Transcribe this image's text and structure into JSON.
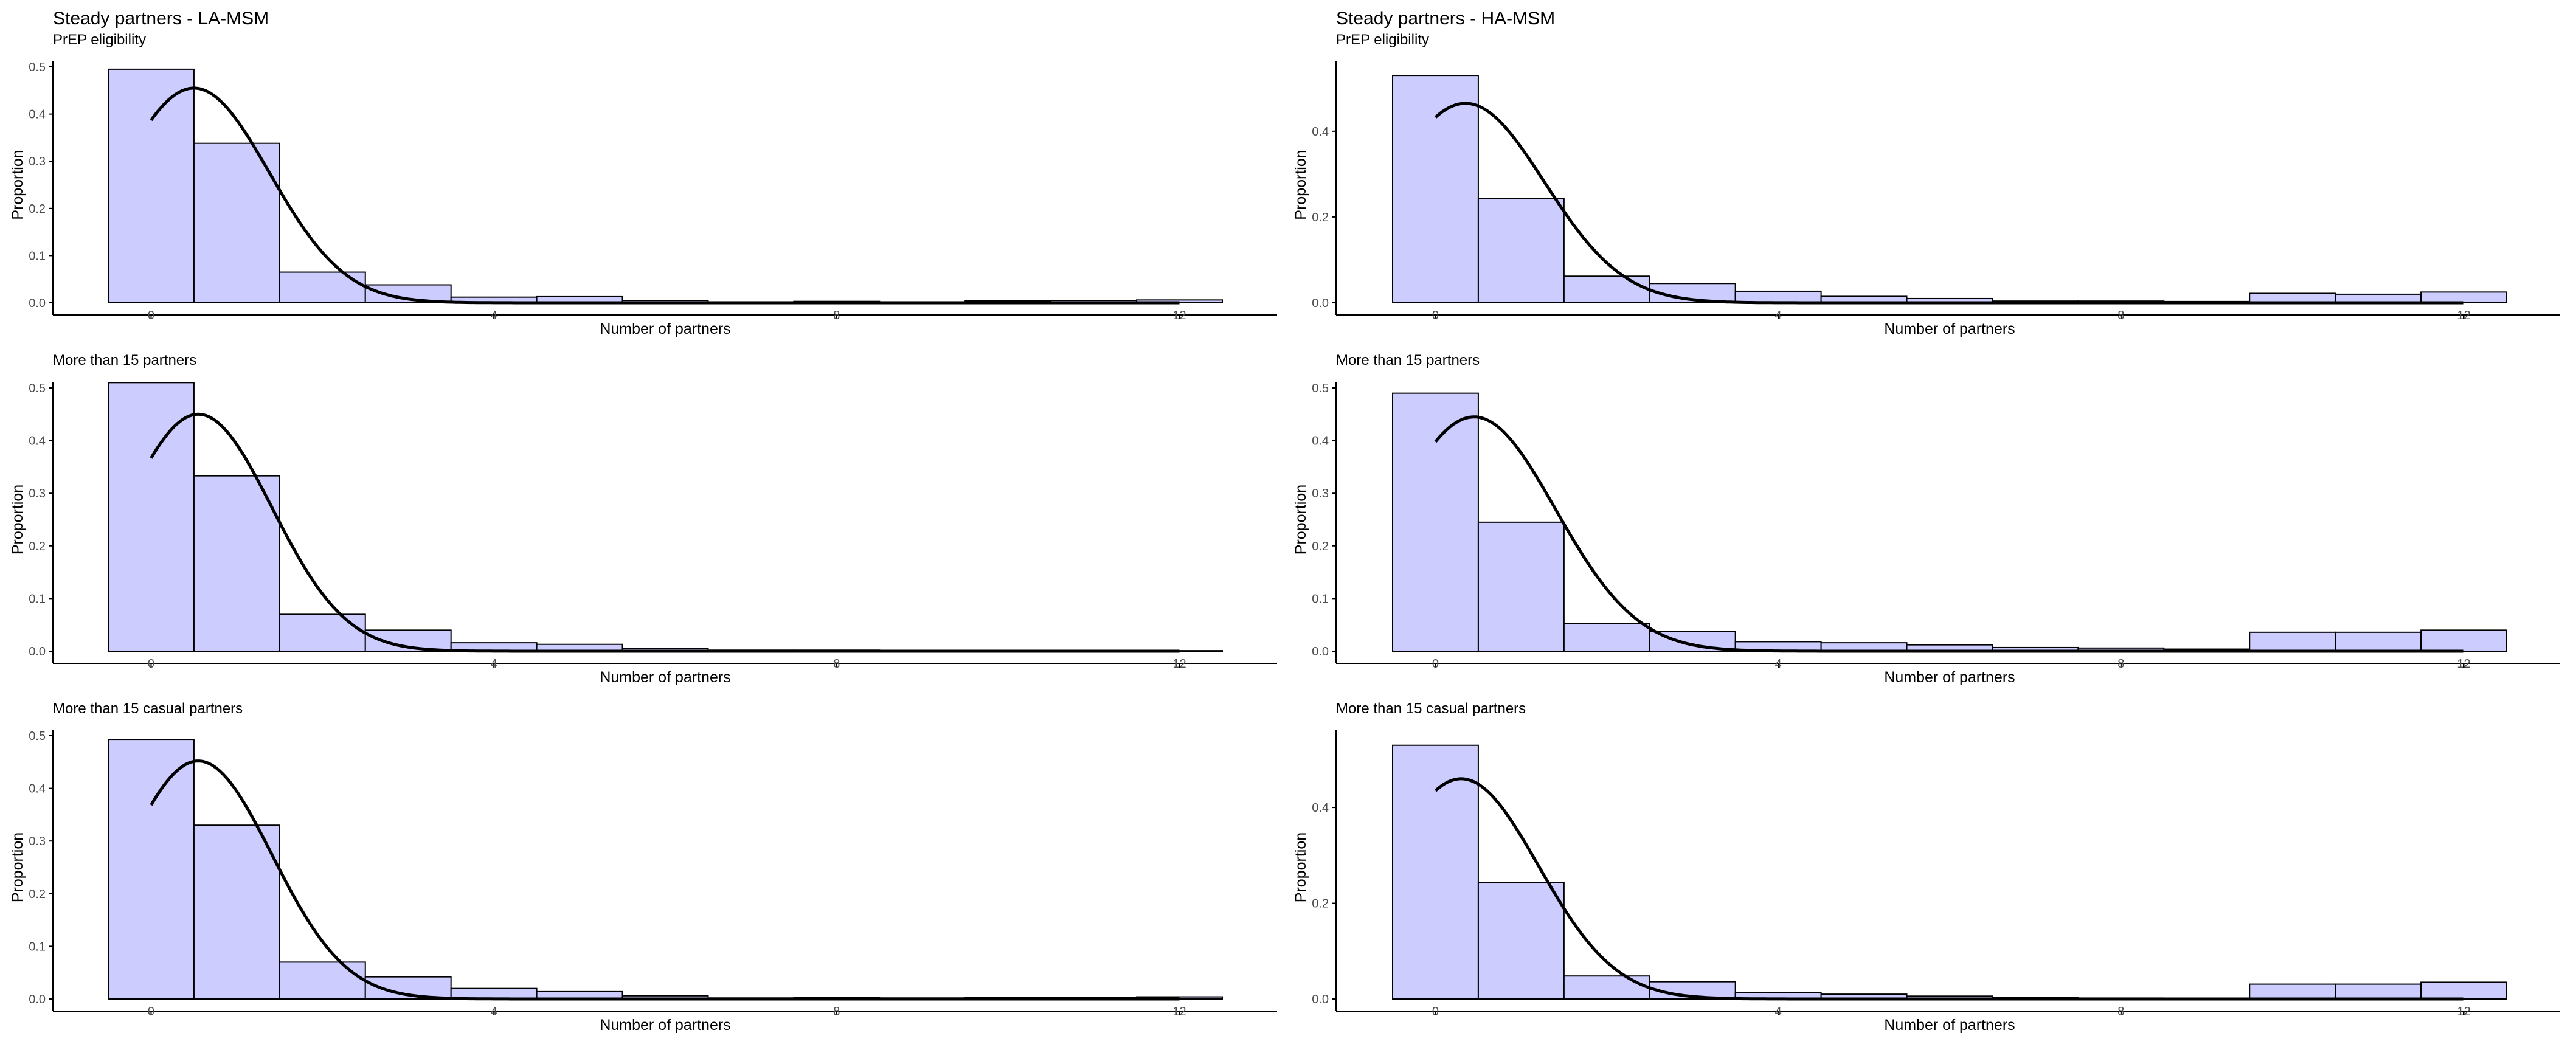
{
  "figure_titles": [
    "Steady partners - LA-MSM",
    "Steady partners - HA-MSM"
  ],
  "colors": {
    "bar_fill": "#CCCCFF",
    "bar_stroke": "#000000",
    "curve": "#000000",
    "axis": "#000000",
    "text": "#000000"
  },
  "chart_data": [
    {
      "type": "bar",
      "title": "Steady partners - LA-MSM",
      "subtitle": "PrEP eligibility",
      "xlabel": "Number of partners",
      "ylabel": "Proportion",
      "x": [
        0,
        1,
        2,
        3,
        4,
        5,
        6,
        7,
        8,
        9,
        10,
        11,
        12
      ],
      "values": [
        0.495,
        0.338,
        0.065,
        0.038,
        0.012,
        0.013,
        0.005,
        0.002,
        0.003,
        0.002,
        0.004,
        0.005,
        0.006
      ],
      "xlim": [
        -0.5,
        12.5
      ],
      "ylim": [
        0,
        0.5
      ],
      "xticks": [
        0,
        4,
        8,
        12
      ],
      "yticks": [
        0.0,
        0.1,
        0.2,
        0.3,
        0.4,
        0.5
      ],
      "ytick_labels": [
        "0.0",
        "0.1",
        "0.2",
        "0.3",
        "0.4",
        "0.5"
      ],
      "curve": {
        "mean": 0.5,
        "sd": 0.88,
        "peak": 0.455,
        "from": 0,
        "to": 12
      }
    },
    {
      "type": "bar",
      "title": "Steady partners - HA-MSM",
      "subtitle": "PrEP eligibility",
      "xlabel": "Number of partners",
      "ylabel": "Proportion",
      "x": [
        0,
        1,
        2,
        3,
        4,
        5,
        6,
        7,
        8,
        9,
        10,
        11,
        12
      ],
      "values": [
        0.53,
        0.243,
        0.062,
        0.045,
        0.027,
        0.015,
        0.01,
        0.004,
        0.004,
        0.003,
        0.022,
        0.02,
        0.025
      ],
      "xlim": [
        -0.5,
        12.5
      ],
      "ylim": [
        0,
        0.55
      ],
      "xticks": [
        0,
        4,
        8,
        12
      ],
      "yticks": [
        0.0,
        0.2,
        0.4
      ],
      "ytick_labels": [
        "0.0",
        "0.2",
        "0.4"
      ],
      "curve": {
        "mean": 0.35,
        "sd": 0.92,
        "peak": 0.465,
        "from": 0,
        "to": 12
      }
    },
    {
      "type": "bar",
      "title": "",
      "subtitle": "More than 15 partners",
      "xlabel": "Number of partners",
      "ylabel": "Proportion",
      "x": [
        0,
        1,
        2,
        3,
        4,
        5,
        6,
        7,
        8,
        9,
        10,
        11,
        12
      ],
      "values": [
        0.51,
        0.333,
        0.07,
        0.04,
        0.016,
        0.013,
        0.005,
        0.002,
        0.002,
        0.001,
        0.001,
        0.001,
        0.001
      ],
      "xlim": [
        -0.5,
        12.5
      ],
      "ylim": [
        0,
        0.5
      ],
      "xticks": [
        0,
        4,
        8,
        12
      ],
      "yticks": [
        0.0,
        0.1,
        0.2,
        0.3,
        0.4,
        0.5
      ],
      "ytick_labels": [
        "0.0",
        "0.1",
        "0.2",
        "0.3",
        "0.4",
        "0.5"
      ],
      "curve": {
        "mean": 0.55,
        "sd": 0.86,
        "peak": 0.45,
        "from": 0,
        "to": 12
      }
    },
    {
      "type": "bar",
      "title": "",
      "subtitle": "More than 15 partners",
      "xlabel": "Number of partners",
      "ylabel": "Proportion",
      "x": [
        0,
        1,
        2,
        3,
        4,
        5,
        6,
        7,
        8,
        9,
        10,
        11,
        12
      ],
      "values": [
        0.49,
        0.245,
        0.052,
        0.038,
        0.018,
        0.016,
        0.012,
        0.007,
        0.006,
        0.004,
        0.036,
        0.036,
        0.04
      ],
      "xlim": [
        -0.5,
        12.5
      ],
      "ylim": [
        0,
        0.5
      ],
      "xticks": [
        0,
        4,
        8,
        12
      ],
      "yticks": [
        0.0,
        0.1,
        0.2,
        0.3,
        0.4,
        0.5
      ],
      "ytick_labels": [
        "0.0",
        "0.1",
        "0.2",
        "0.3",
        "0.4",
        "0.5"
      ],
      "curve": {
        "mean": 0.45,
        "sd": 0.95,
        "peak": 0.445,
        "from": 0,
        "to": 12
      }
    },
    {
      "type": "bar",
      "title": "",
      "subtitle": "More than 15 casual partners",
      "xlabel": "Number of partners",
      "ylabel": "Proportion",
      "x": [
        0,
        1,
        2,
        3,
        4,
        5,
        6,
        7,
        8,
        9,
        10,
        11,
        12
      ],
      "values": [
        0.493,
        0.33,
        0.07,
        0.042,
        0.02,
        0.014,
        0.006,
        0.002,
        0.003,
        0.002,
        0.003,
        0.003,
        0.004
      ],
      "xlim": [
        -0.5,
        12.5
      ],
      "ylim": [
        0,
        0.5
      ],
      "xticks": [
        0,
        4,
        8,
        12
      ],
      "yticks": [
        0.0,
        0.1,
        0.2,
        0.3,
        0.4,
        0.5
      ],
      "ytick_labels": [
        "0.0",
        "0.1",
        "0.2",
        "0.3",
        "0.4",
        "0.5"
      ],
      "curve": {
        "mean": 0.55,
        "sd": 0.86,
        "peak": 0.452,
        "from": 0,
        "to": 12
      }
    },
    {
      "type": "bar",
      "title": "",
      "subtitle": "More than 15 casual partners",
      "xlabel": "Number of partners",
      "ylabel": "Proportion",
      "x": [
        0,
        1,
        2,
        3,
        4,
        5,
        6,
        7,
        8,
        9,
        10,
        11,
        12
      ],
      "values": [
        0.53,
        0.243,
        0.048,
        0.036,
        0.013,
        0.01,
        0.006,
        0.003,
        0.002,
        0.001,
        0.031,
        0.031,
        0.035
      ],
      "xlim": [
        -0.5,
        12.5
      ],
      "ylim": [
        0,
        0.55
      ],
      "xticks": [
        0,
        4,
        8,
        12
      ],
      "yticks": [
        0.0,
        0.2,
        0.4
      ],
      "ytick_labels": [
        "0.0",
        "0.2",
        "0.4"
      ],
      "curve": {
        "mean": 0.3,
        "sd": 0.9,
        "peak": 0.46,
        "from": 0,
        "to": 12
      }
    }
  ]
}
